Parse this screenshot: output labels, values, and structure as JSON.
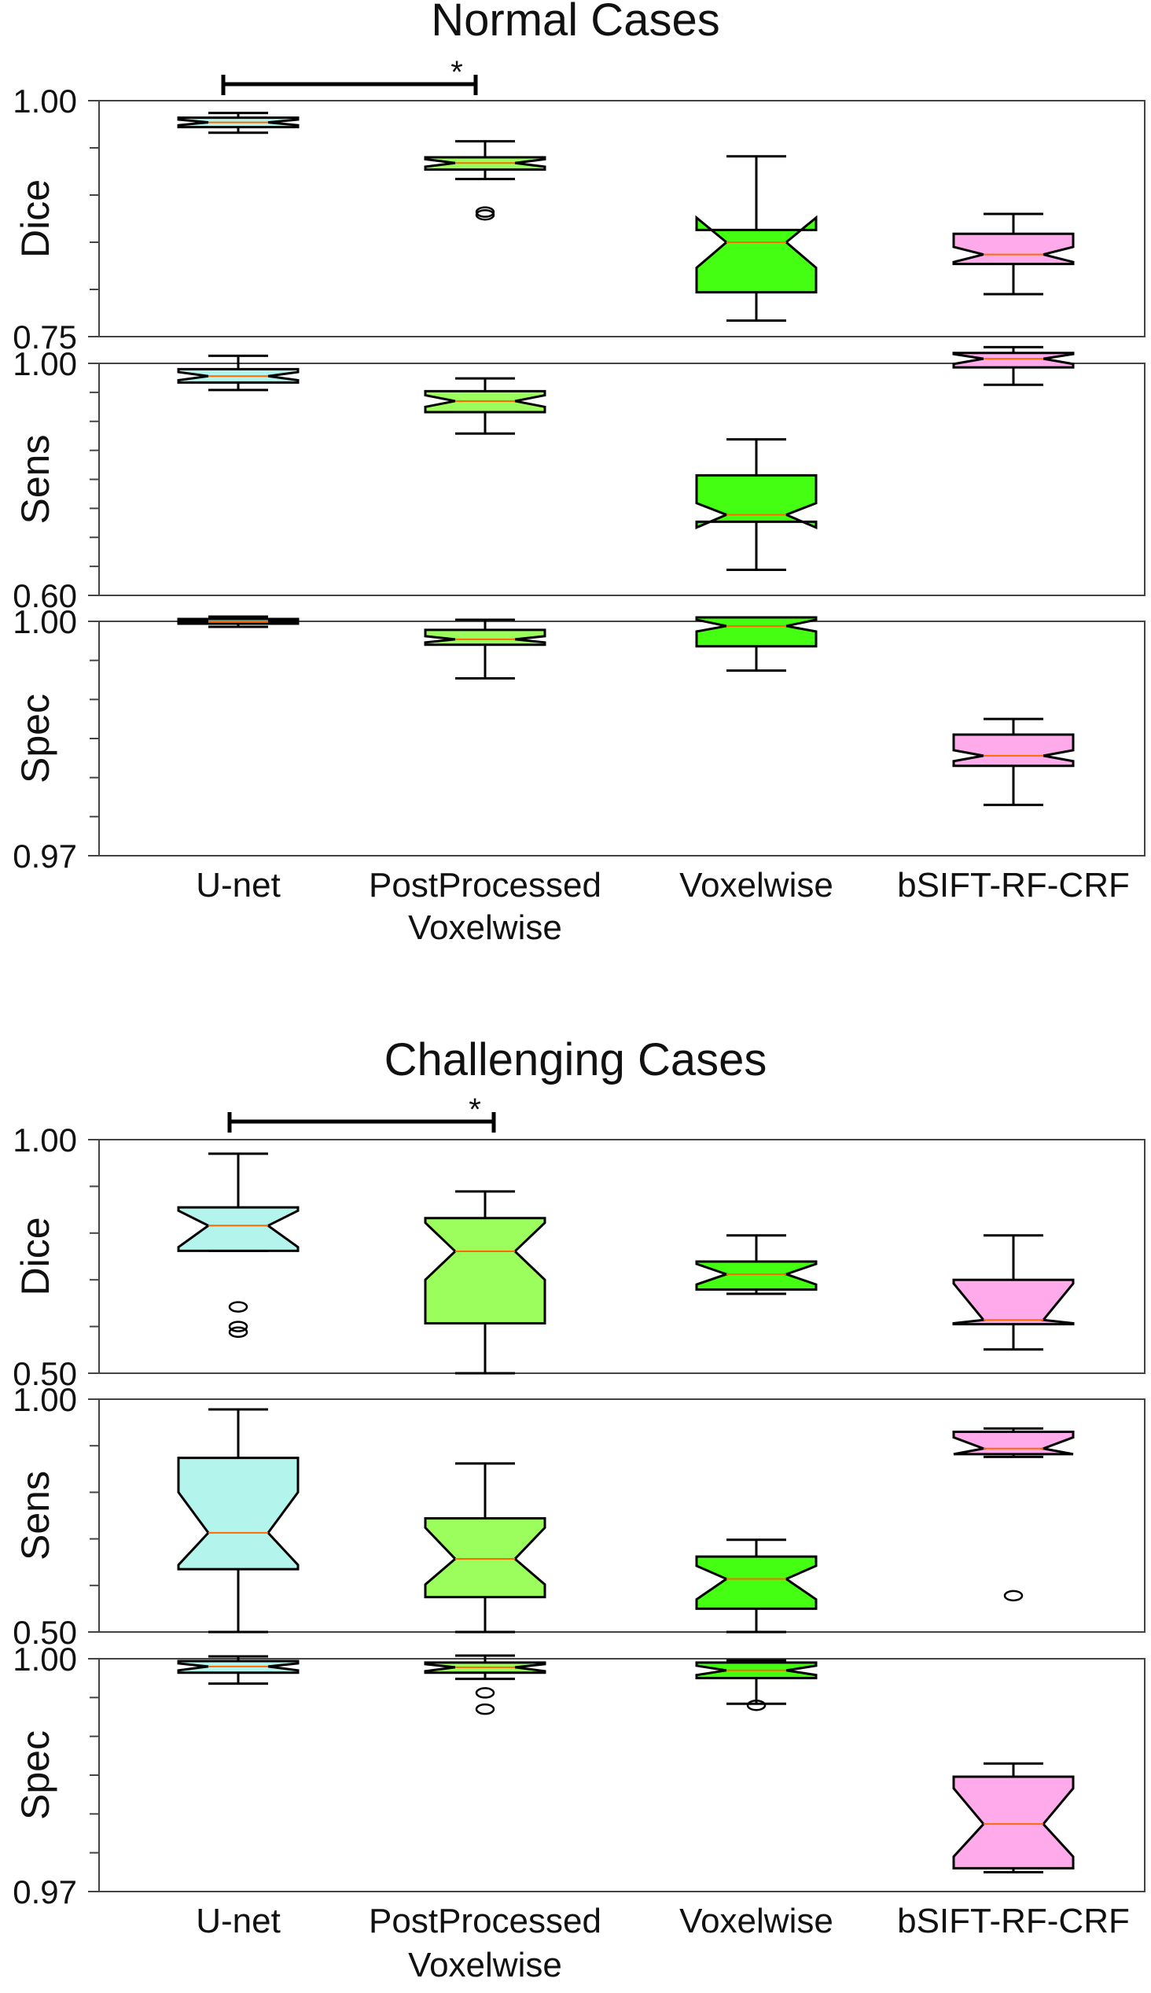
{
  "colors": {
    "unet": "#b3f5ec",
    "postprocessed": "#9bfe5d",
    "voxelwise": "#44ff11",
    "bsift": "#ffaaea",
    "median": "#ff6a00",
    "outline": "#000000"
  },
  "categories": [
    {
      "key": "unet",
      "label_lines": [
        "U-net"
      ]
    },
    {
      "key": "postprocessed",
      "label_lines": [
        "PostProcessed",
        "Voxelwise"
      ]
    },
    {
      "key": "voxelwise",
      "label_lines": [
        "Voxelwise"
      ]
    },
    {
      "key": "bsift",
      "label_lines": [
        "bSIFT-RF-CRF"
      ]
    }
  ],
  "chart_data": [
    {
      "type": "boxplot",
      "title": "Normal Cases",
      "significance": {
        "from": "U-net",
        "to": "PostProcessed Voxelwise",
        "label": "*"
      },
      "panels": [
        {
          "ylabel": "Dice",
          "ylim": [
            0.75,
            1.0
          ],
          "tick_labels": [
            "1.00",
            "0.75"
          ],
          "minor_ticks": [
            0.8,
            0.85,
            0.9,
            0.95
          ],
          "boxes": [
            {
              "q1": 0.972,
              "median": 0.977,
              "q3": 0.982,
              "notch_lo": 0.974,
              "notch_hi": 0.98,
              "whisker_lo": 0.966,
              "whisker_hi": 0.987,
              "outliers": []
            },
            {
              "q1": 0.927,
              "median": 0.934,
              "q3": 0.94,
              "notch_lo": 0.93,
              "notch_hi": 0.938,
              "whisker_lo": 0.917,
              "whisker_hi": 0.957,
              "outliers": [
                0.879,
                0.882
              ]
            },
            {
              "q1": 0.797,
              "median": 0.85,
              "q3": 0.863,
              "notch_lo": 0.823,
              "notch_hi": 0.876,
              "whisker_lo": 0.767,
              "whisker_hi": 0.941,
              "outliers": []
            },
            {
              "q1": 0.827,
              "median": 0.837,
              "q3": 0.859,
              "notch_lo": 0.829,
              "notch_hi": 0.845,
              "whisker_lo": 0.795,
              "whisker_hi": 0.88,
              "outliers": []
            }
          ]
        },
        {
          "ylabel": "Sens",
          "ylim": [
            0.6,
            1.0
          ],
          "tick_labels": [
            "1.00",
            "0.60"
          ],
          "minor_ticks": [
            0.65,
            0.7,
            0.75,
            0.8,
            0.85,
            0.9,
            0.95
          ],
          "boxes": [
            {
              "q1": 0.967,
              "median": 0.978,
              "q3": 0.99,
              "notch_lo": 0.971,
              "notch_hi": 0.985,
              "whisker_lo": 0.954,
              "whisker_hi": 1.013,
              "outliers": []
            },
            {
              "q1": 0.916,
              "median": 0.935,
              "q3": 0.952,
              "notch_lo": 0.925,
              "notch_hi": 0.945,
              "whisker_lo": 0.879,
              "whisker_hi": 0.974,
              "outliers": []
            },
            {
              "q1": 0.727,
              "median": 0.739,
              "q3": 0.807,
              "notch_lo": 0.717,
              "notch_hi": 0.759,
              "whisker_lo": 0.644,
              "whisker_hi": 0.869,
              "outliers": []
            },
            {
              "q1": 0.993,
              "median": 1.008,
              "q3": 1.018,
              "notch_lo": 0.999,
              "notch_hi": 1.016,
              "whisker_lo": 0.963,
              "whisker_hi": 1.028,
              "outliers": []
            }
          ]
        },
        {
          "ylabel": "Spec",
          "ylim": [
            0.97,
            1.0
          ],
          "tick_labels": [
            "1.00",
            "0.97"
          ],
          "minor_ticks": [
            0.975,
            0.98,
            0.985,
            0.99,
            0.995
          ],
          "boxes": [
            {
              "q1": 0.9997,
              "median": 1.0,
              "q3": 1.0003,
              "notch_lo": 0.9999,
              "notch_hi": 1.0001,
              "whisker_lo": 0.9993,
              "whisker_hi": 1.0006,
              "outliers": []
            },
            {
              "q1": 0.997,
              "median": 0.9977,
              "q3": 0.9989,
              "notch_lo": 0.9973,
              "notch_hi": 0.9981,
              "whisker_lo": 0.9927,
              "whisker_hi": 1.0002,
              "outliers": []
            },
            {
              "q1": 0.9968,
              "median": 0.9994,
              "q3": 1.0005,
              "notch_lo": 0.9987,
              "notch_hi": 1.0002,
              "whisker_lo": 0.9937,
              "whisker_hi": 1.0005,
              "outliers": []
            },
            {
              "q1": 0.9815,
              "median": 0.9828,
              "q3": 0.9855,
              "notch_lo": 0.9821,
              "notch_hi": 0.9835,
              "whisker_lo": 0.9765,
              "whisker_hi": 0.9875,
              "outliers": []
            }
          ]
        }
      ]
    },
    {
      "type": "boxplot",
      "title": "Challenging Cases",
      "significance": {
        "from": "U-net",
        "to": "PostProcessed Voxelwise",
        "label": "*"
      },
      "panels": [
        {
          "ylabel": "Dice",
          "ylim": [
            0.5,
            1.0
          ],
          "tick_labels": [
            "1.00",
            "0.50"
          ],
          "minor_ticks": [
            0.6,
            0.7,
            0.8,
            0.9
          ],
          "boxes": [
            {
              "q1": 0.762,
              "median": 0.816,
              "q3": 0.855,
              "notch_lo": 0.77,
              "notch_hi": 0.848,
              "whisker_lo": 0.762,
              "whisker_hi": 0.97,
              "outliers": [
                0.642,
                0.6,
                0.588
              ]
            },
            {
              "q1": 0.607,
              "median": 0.761,
              "q3": 0.832,
              "notch_lo": 0.7,
              "notch_hi": 0.822,
              "whisker_lo": 0.5,
              "whisker_hi": 0.889,
              "outliers": []
            },
            {
              "q1": 0.679,
              "median": 0.712,
              "q3": 0.739,
              "notch_lo": 0.69,
              "notch_hi": 0.734,
              "whisker_lo": 0.67,
              "whisker_hi": 0.795,
              "outliers": []
            },
            {
              "q1": 0.605,
              "median": 0.614,
              "q3": 0.7,
              "notch_lo": 0.607,
              "notch_hi": 0.692,
              "whisker_lo": 0.551,
              "whisker_hi": 0.795,
              "outliers": []
            }
          ]
        },
        {
          "ylabel": "Sens",
          "ylim": [
            0.5,
            1.0
          ],
          "tick_labels": [
            "1.00",
            "0.50"
          ],
          "minor_ticks": [
            0.6,
            0.7,
            0.8,
            0.9
          ],
          "boxes": [
            {
              "q1": 0.635,
              "median": 0.713,
              "q3": 0.874,
              "notch_lo": 0.644,
              "notch_hi": 0.8,
              "whisker_lo": 0.5,
              "whisker_hi": 0.978,
              "outliers": []
            },
            {
              "q1": 0.575,
              "median": 0.657,
              "q3": 0.744,
              "notch_lo": 0.602,
              "notch_hi": 0.724,
              "whisker_lo": 0.5,
              "whisker_hi": 0.862,
              "outliers": []
            },
            {
              "q1": 0.55,
              "median": 0.614,
              "q3": 0.662,
              "notch_lo": 0.57,
              "notch_hi": 0.642,
              "whisker_lo": 0.5,
              "whisker_hi": 0.698,
              "outliers": []
            },
            {
              "q1": 0.882,
              "median": 0.894,
              "q3": 0.93,
              "notch_lo": 0.882,
              "notch_hi": 0.918,
              "whisker_lo": 0.876,
              "whisker_hi": 0.937,
              "outliers": [
                0.578
              ]
            }
          ]
        },
        {
          "ylabel": "Spec",
          "ylim": [
            0.97,
            1.0
          ],
          "tick_labels": [
            "1.00",
            "0.97"
          ],
          "minor_ticks": [
            0.975,
            0.98,
            0.985,
            0.99,
            0.995
          ],
          "boxes": [
            {
              "q1": 0.9982,
              "median": 0.999,
              "q3": 0.9997,
              "notch_lo": 0.9985,
              "notch_hi": 0.9994,
              "whisker_lo": 0.9968,
              "whisker_hi": 1.0003,
              "outliers": []
            },
            {
              "q1": 0.9982,
              "median": 0.9989,
              "q3": 0.9995,
              "notch_lo": 0.9984,
              "notch_hi": 0.9993,
              "whisker_lo": 0.9974,
              "whisker_hi": 1.0004,
              "outliers": [
                0.9956,
                0.9935
              ]
            },
            {
              "q1": 0.9975,
              "median": 0.9985,
              "q3": 0.9995,
              "notch_lo": 0.9979,
              "notch_hi": 0.9991,
              "whisker_lo": 0.9942,
              "whisker_hi": 0.9998,
              "outliers": [
                0.994
              ]
            },
            {
              "q1": 0.973,
              "median": 0.9787,
              "q3": 0.9848,
              "notch_lo": 0.9745,
              "notch_hi": 0.9833,
              "whisker_lo": 0.9725,
              "whisker_hi": 0.9865,
              "outliers": []
            }
          ]
        }
      ]
    }
  ]
}
